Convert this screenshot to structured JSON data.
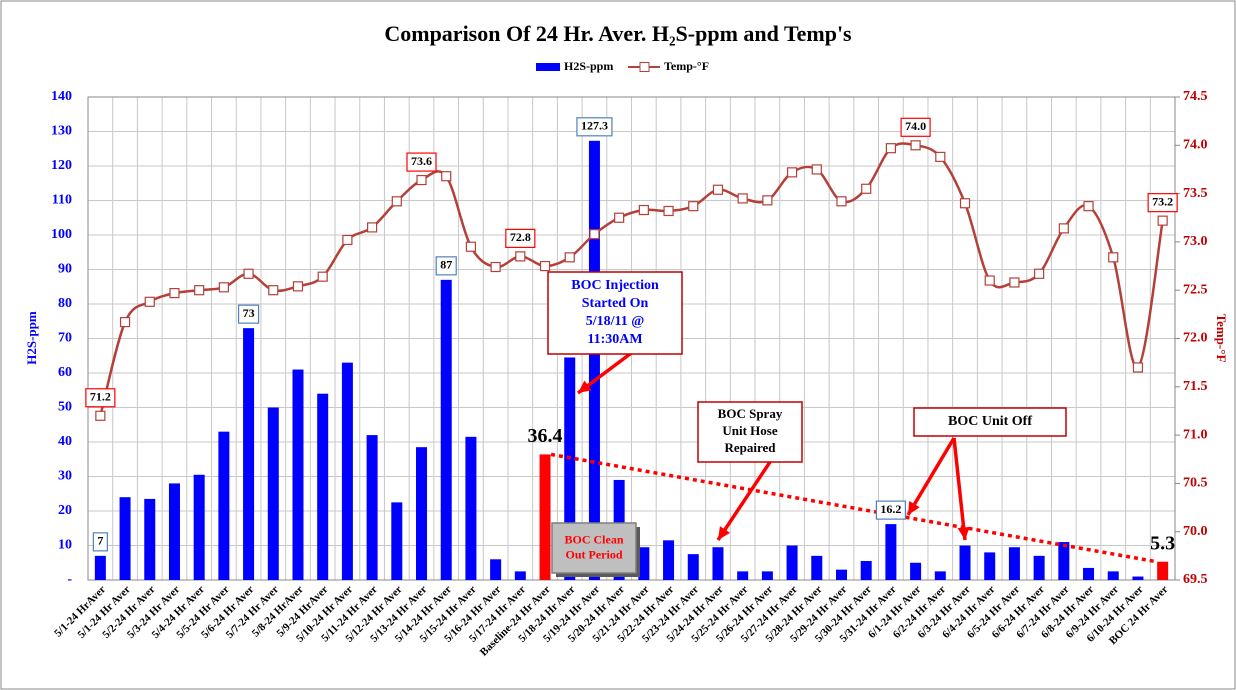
{
  "chart_data": {
    "type": "bar_line",
    "title": "Comparison Of 24 Hr. Aver. H₂S-ppm and Temp's",
    "y_label": "H2S-ppm",
    "y2_label": "Temp-°F",
    "categories": [
      "5/1-24 HrAver",
      "5/1-24 Hr Aver",
      "5/2-24 Hr Aver",
      "5/3-24 Hr Aver",
      "5/4-24 Hr Aver",
      "5/5-24 Hr Aver",
      "5/6-24 Hr Aver",
      "5/7-24 Hr Aver",
      "5/8-24 HrAver",
      "5/9-24 HrAver",
      "5/10-24 Hr Aver",
      "5/11-24 Hr Aver",
      "5/12-24 Hr Aver",
      "5/13-24 Hr Aver",
      "5/14-24 Hr Aver",
      "5/15-24 Hr Aver",
      "5/16-24 Hr Aver",
      "5/17-24 Hr Aver",
      "Baseline-24 Hr Aver",
      "5/18-24 Hr Aver",
      "5/19-24 Hr Aver",
      "5/20-24 Hr Aver",
      "5/21-24 Hr Aver",
      "5/22-24 Hr Aver",
      "5/23-24 Hr Aver",
      "5/24-24 Hr Aver",
      "5/25-24 Hr Aver",
      "5/26-24 Hr Aver",
      "5/27-24 Hr Aver",
      "5/28-24 Hr Aver",
      "5/29-24 Hr Aver",
      "5/30-24 Hr Aver",
      "5/31-24 Hr Aver",
      "6/1-24 Hr Aver",
      "6/2-24 Hr Aver",
      "6/3-24 Hr Aver",
      "6/4-24 Hr Aver",
      "6/5-24 Hr Aver",
      "6/6-24 Hr Aver",
      "6/7-24 Hr Aver",
      "6/8-24 Hr Aver",
      "6/9-24 Hr Aver",
      "6/10-24 Hr Aver",
      "BOC 24 Hr Aver"
    ],
    "series": [
      {
        "name": "H2S-ppm",
        "kind": "bar",
        "color": "#0000ff",
        "colors": [
          "#0000ff",
          "#0000ff",
          "#0000ff",
          "#0000ff",
          "#0000ff",
          "#0000ff",
          "#0000ff",
          "#0000ff",
          "#0000ff",
          "#0000ff",
          "#0000ff",
          "#0000ff",
          "#0000ff",
          "#0000ff",
          "#0000ff",
          "#0000ff",
          "#0000ff",
          "#0000ff",
          "#ff0000",
          "#0000ff",
          "#0000ff",
          "#0000ff",
          "#0000ff",
          "#0000ff",
          "#0000ff",
          "#0000ff",
          "#0000ff",
          "#0000ff",
          "#0000ff",
          "#0000ff",
          "#0000ff",
          "#0000ff",
          "#0000ff",
          "#0000ff",
          "#0000ff",
          "#0000ff",
          "#0000ff",
          "#0000ff",
          "#0000ff",
          "#0000ff",
          "#0000ff",
          "#0000ff",
          "#0000ff",
          "#ff0000"
        ],
        "values": [
          7,
          24,
          23.5,
          28,
          30.5,
          43,
          73,
          50,
          61,
          54,
          63,
          42,
          22.5,
          38.5,
          87,
          41.5,
          6,
          2.5,
          36.4,
          64.5,
          127.3,
          29,
          9.5,
          11.5,
          7.5,
          9.5,
          2.5,
          2.5,
          10,
          7,
          3,
          5.5,
          16.2,
          5,
          2.5,
          10,
          8,
          9.5,
          7,
          11,
          3.5,
          2.5,
          1,
          5.3
        ],
        "value_labels": [
          "7",
          null,
          null,
          null,
          null,
          null,
          "73",
          null,
          null,
          null,
          null,
          null,
          null,
          null,
          "87",
          null,
          null,
          null,
          "36.4",
          null,
          "127.3",
          null,
          null,
          null,
          null,
          null,
          null,
          null,
          null,
          null,
          null,
          null,
          "16.2",
          null,
          null,
          null,
          null,
          null,
          null,
          null,
          null,
          null,
          null,
          "5.3"
        ]
      },
      {
        "name": "Temp-°F",
        "kind": "line",
        "axis": "y2",
        "color": "#b5403a",
        "values": [
          71.2,
          72.17,
          72.38,
          72.47,
          72.5,
          72.53,
          72.67,
          72.5,
          72.54,
          72.64,
          73.02,
          73.15,
          73.42,
          73.64,
          73.68,
          72.95,
          72.74,
          72.85,
          72.75,
          72.84,
          73.08,
          73.25,
          73.33,
          73.32,
          73.37,
          73.54,
          73.45,
          73.43,
          73.72,
          73.75,
          73.42,
          73.55,
          73.97,
          74,
          73.88,
          73.4,
          72.6,
          72.58,
          72.67,
          73.14,
          73.37,
          72.84,
          71.7,
          73.22
        ],
        "value_labels": [
          "71.2",
          null,
          null,
          null,
          null,
          null,
          null,
          null,
          null,
          null,
          null,
          null,
          null,
          "73.6",
          null,
          null,
          null,
          "72.8",
          null,
          null,
          null,
          null,
          null,
          null,
          null,
          null,
          null,
          null,
          null,
          null,
          null,
          null,
          null,
          "74.0",
          null,
          null,
          null,
          null,
          null,
          null,
          null,
          null,
          null,
          "73.2"
        ]
      }
    ],
    "ylim": [
      0,
      140
    ],
    "yticks": [
      {
        "value": 0,
        "label": "-"
      },
      10,
      20,
      30,
      40,
      50,
      60,
      70,
      80,
      90,
      100,
      110,
      120,
      130,
      140
    ],
    "y2lim": [
      69.5,
      74.5
    ],
    "y2ticks": [
      {
        "value": 69.5,
        "label": "69.5"
      },
      {
        "value": 70,
        "label": "70.0"
      },
      {
        "value": 70.5,
        "label": "70.5"
      },
      {
        "value": 71,
        "label": "71.0"
      },
      {
        "value": 71.5,
        "label": "71.5"
      },
      {
        "value": 72,
        "label": "72.0"
      },
      {
        "value": 72.5,
        "label": "72.5"
      },
      {
        "value": 73,
        "label": "73.0"
      },
      {
        "value": 73.5,
        "label": "73.5"
      },
      {
        "value": 74,
        "label": "74.0"
      },
      {
        "value": 74.5,
        "label": "74.5"
      }
    ],
    "grid": true,
    "legend": "top",
    "annotations": [
      {
        "lines": [
          "BOC Injection",
          "Started On",
          "5/18/11 @",
          "11:30AM"
        ]
      },
      {
        "lines": [
          "BOC Spray",
          "Unit Hose",
          "Repaired"
        ]
      },
      {
        "lines": [
          "BOC Unit Off"
        ]
      },
      {
        "lines": [
          "BOC Clean",
          "Out Period"
        ]
      }
    ]
  }
}
